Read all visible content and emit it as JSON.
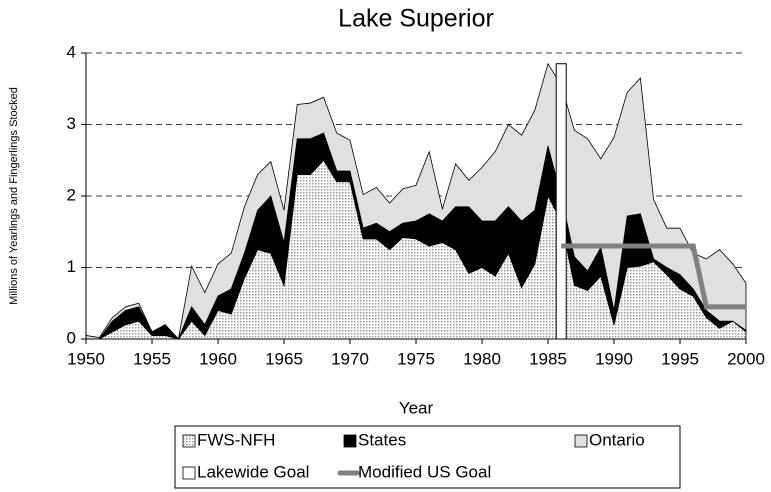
{
  "chart_data": {
    "type": "stacked_area",
    "title": "Lake Superior",
    "x_label": "Year",
    "y_label": "Millions of Yearlings and Fingerlings Stocked",
    "x": [
      1950,
      1951,
      1952,
      1953,
      1954,
      1955,
      1956,
      1957,
      1958,
      1959,
      1960,
      1961,
      1962,
      1963,
      1964,
      1965,
      1966,
      1967,
      1968,
      1969,
      1970,
      1971,
      1972,
      1973,
      1974,
      1975,
      1976,
      1977,
      1978,
      1979,
      1980,
      1981,
      1982,
      1983,
      1984,
      1985,
      1986,
      1987,
      1988,
      1989,
      1990,
      1991,
      1992,
      1993,
      1994,
      1995,
      1996,
      1997,
      1998,
      1999,
      2000
    ],
    "series": [
      {
        "name": "FWS-NFH",
        "color": "#c8c8c8",
        "values": [
          0,
          0,
          0.1,
          0.2,
          0.25,
          0.05,
          0.05,
          0,
          0.25,
          0.05,
          0.4,
          0.35,
          0.85,
          1.25,
          1.2,
          0.75,
          2.3,
          2.3,
          2.5,
          2.2,
          2.2,
          1.4,
          1.4,
          1.25,
          1.42,
          1.4,
          1.3,
          1.35,
          1.25,
          0.92,
          1.0,
          0.88,
          1.2,
          0.72,
          1.05,
          2.0,
          1.65,
          0.75,
          0.68,
          0.88,
          0.2,
          1.0,
          1.02,
          1.08,
          0.9,
          0.7,
          0.6,
          0.3,
          0.15,
          0.25,
          0.1
        ]
      },
      {
        "name": "States",
        "color": "#000000",
        "values": [
          0,
          0,
          0.15,
          0.2,
          0.2,
          0.05,
          0.15,
          0,
          0.2,
          0.15,
          0.2,
          0.35,
          0.35,
          0.55,
          0.8,
          0.6,
          0.5,
          0.5,
          0.38,
          0.15,
          0.15,
          0.15,
          0.22,
          0.25,
          0.2,
          0.25,
          0.45,
          0.3,
          0.6,
          0.93,
          0.65,
          0.77,
          0.65,
          0.93,
          0.75,
          0.7,
          0.35,
          0.4,
          0.27,
          0.4,
          0.2,
          0.72,
          0.73,
          0.04,
          0.1,
          0.2,
          0.1,
          0.1,
          0.1,
          0,
          0.02
        ]
      },
      {
        "name": "Ontario",
        "color": "#e0e0e0",
        "values": [
          0.05,
          0.02,
          0.05,
          0.05,
          0.05,
          0,
          0,
          0,
          0.57,
          0.45,
          0.45,
          0.5,
          0.65,
          0.5,
          0.48,
          0.45,
          0.48,
          0.5,
          0.5,
          0.53,
          0.43,
          0.47,
          0.5,
          0.4,
          0.48,
          0.5,
          0.87,
          0.17,
          0.6,
          0.37,
          0.75,
          0.97,
          1.15,
          1.2,
          1.4,
          1.15,
          1.55,
          1.77,
          1.85,
          1.24,
          2.42,
          1.73,
          1.9,
          0.83,
          0.55,
          0.65,
          0.5,
          0.72,
          1.0,
          0.8,
          0.66
        ]
      }
    ],
    "goals": [
      {
        "name": "Lakewide Goal",
        "kind": "bar",
        "color": "#ffffff",
        "x": [
          1986
        ],
        "values": [
          3.85
        ]
      },
      {
        "name": "Modified US Goal",
        "kind": "line",
        "color": "#808080",
        "x": [
          1986,
          1996,
          1997,
          2000
        ],
        "values": [
          1.3,
          1.3,
          0.45,
          0.45
        ]
      }
    ],
    "xlim": [
      1950,
      2000
    ],
    "xticks": [
      1950,
      1955,
      1960,
      1965,
      1970,
      1975,
      1980,
      1985,
      1990,
      1995,
      2000
    ],
    "ylim": [
      0,
      4
    ],
    "yticks": [
      0,
      1,
      2,
      3,
      4
    ],
    "grid": true
  }
}
